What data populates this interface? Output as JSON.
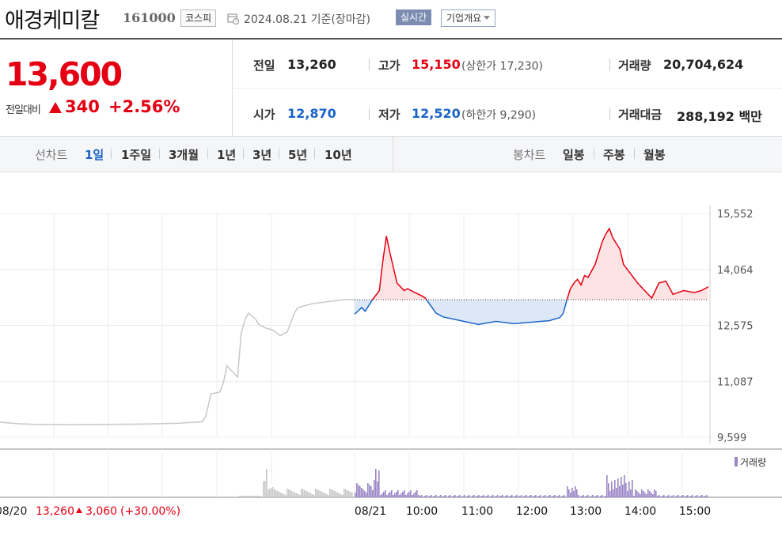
{
  "header": {
    "stock_name": "애경케미칼",
    "stock_code": "161000",
    "market": "코스피",
    "calendar_icon": "calendar-clock-icon",
    "date_text": "2024.08.21  기준(장마감)",
    "realtime_label": "실시간",
    "company_info_label": "기업개요"
  },
  "summary": {
    "current_price": "13,600",
    "change_label": "전일대비",
    "change_amount": "340",
    "change_pct": "+2.56%",
    "prev_close_label": "전일",
    "prev_close": "13,260",
    "high_label": "고가",
    "high": "15,150",
    "upper_limit_text": "(상한가 17,230)",
    "volume_label": "거래량",
    "volume": "20,704,624",
    "open_label": "시가",
    "open": "12,870",
    "low_label": "저가",
    "low": "12,520",
    "lower_limit_text": "(하한가 9,290)",
    "trade_value_label": "거래대금",
    "trade_value": "288,192 백만"
  },
  "period_bar": {
    "line_label": "선차트",
    "line_items": [
      "1일",
      "1주일",
      "3개월",
      "1년",
      "3년",
      "5년",
      "10년"
    ],
    "active_index": 0,
    "candle_label": "봉차트",
    "candle_items": [
      "일봉",
      "주봉",
      "월봉"
    ]
  },
  "colors": {
    "up": "#e40012",
    "down": "#1a64c8",
    "prev_day": "#c8c8c8",
    "volume": "#9b86c6"
  },
  "chart_data": {
    "type": "line",
    "y_ticks": [
      "15,552",
      "14,064",
      "12,575",
      "11,087",
      "9,599"
    ],
    "ylim": [
      9599,
      15552
    ],
    "baseline": 13260,
    "x_ticks": [
      "08/21",
      "10:00",
      "11:00",
      "12:00",
      "13:00",
      "14:00",
      "15:00"
    ],
    "prev_day_footer": {
      "date": "08/20",
      "close": "13,260",
      "change": "3,060",
      "change_pct": "(+30.00%)"
    },
    "volume_legend": "거래량",
    "series": [
      {
        "name": "08/20",
        "color": "#c8c8c8",
        "x": [
          0,
          5,
          10,
          20,
          30,
          40,
          50,
          57,
          58,
          59,
          59.5,
          62,
          63,
          64,
          67,
          68,
          69,
          70,
          72,
          73,
          75,
          77,
          79,
          81,
          83,
          84,
          86,
          88,
          92,
          97,
          100
        ],
        "values": [
          10000,
          9960,
          9940,
          9930,
          9940,
          9950,
          9970,
          10010,
          10150,
          10550,
          10750,
          10800,
          11050,
          11500,
          11200,
          12350,
          12700,
          12900,
          12750,
          12600,
          12500,
          12450,
          12300,
          12400,
          12900,
          13050,
          13100,
          13150,
          13200,
          13260,
          13260
        ]
      },
      {
        "name": "08/21",
        "color": "#e40012",
        "x": [
          0,
          2,
          3,
          4,
          5,
          7,
          8,
          9,
          10,
          12,
          14,
          15,
          17,
          19,
          20,
          23,
          25,
          30,
          35,
          40,
          45,
          50,
          55,
          58,
          59,
          60,
          61,
          62,
          63,
          64,
          65,
          66,
          68,
          70,
          71,
          72,
          73,
          75,
          76,
          78,
          80,
          84,
          86,
          88,
          90,
          93,
          96,
          98,
          100
        ],
        "values": [
          12870,
          13050,
          12950,
          13100,
          13250,
          13500,
          14300,
          14950,
          14500,
          13700,
          13500,
          13550,
          13450,
          13360,
          13300,
          12900,
          12800,
          12700,
          12600,
          12680,
          12620,
          12660,
          12700,
          12780,
          12900,
          13250,
          13550,
          13700,
          13800,
          13650,
          13900,
          13850,
          14200,
          14800,
          15000,
          15150,
          14900,
          14600,
          14200,
          13950,
          13700,
          13300,
          13700,
          13750,
          13400,
          13500,
          13450,
          13500,
          13600
        ]
      }
    ]
  }
}
